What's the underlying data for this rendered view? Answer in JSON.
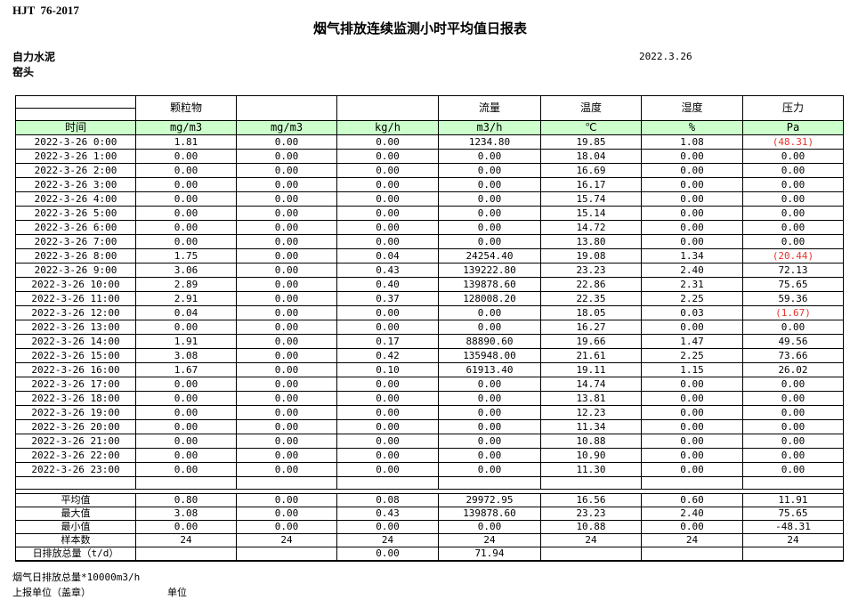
{
  "header": {
    "standard": "HJT  76-2017",
    "title": "烟气排放连续监测小时平均值日报表",
    "company": "自力水泥",
    "station": "窑头",
    "date": "2022.3.26"
  },
  "colors": {
    "header_fill": "#ccffcc",
    "negative": "#e8332a",
    "border": "#000000"
  },
  "table": {
    "groups": [
      "",
      "颗粒物",
      "",
      "",
      "流量",
      "温度",
      "湿度",
      "压力"
    ],
    "units": [
      "时间",
      "mg/m3",
      "mg/m3",
      "kg/h",
      "m3/h",
      "℃",
      "%",
      "Pa"
    ],
    "hourly_rows": [
      [
        "2022-3-26 0:00",
        "1.81",
        "0.00",
        "0.00",
        "1234.80",
        "19.85",
        "1.08",
        "(48.31)"
      ],
      [
        "2022-3-26 1:00",
        "0.00",
        "0.00",
        "0.00",
        "0.00",
        "18.04",
        "0.00",
        "0.00"
      ],
      [
        "2022-3-26 2:00",
        "0.00",
        "0.00",
        "0.00",
        "0.00",
        "16.69",
        "0.00",
        "0.00"
      ],
      [
        "2022-3-26 3:00",
        "0.00",
        "0.00",
        "0.00",
        "0.00",
        "16.17",
        "0.00",
        "0.00"
      ],
      [
        "2022-3-26 4:00",
        "0.00",
        "0.00",
        "0.00",
        "0.00",
        "15.74",
        "0.00",
        "0.00"
      ],
      [
        "2022-3-26 5:00",
        "0.00",
        "0.00",
        "0.00",
        "0.00",
        "15.14",
        "0.00",
        "0.00"
      ],
      [
        "2022-3-26 6:00",
        "0.00",
        "0.00",
        "0.00",
        "0.00",
        "14.72",
        "0.00",
        "0.00"
      ],
      [
        "2022-3-26 7:00",
        "0.00",
        "0.00",
        "0.00",
        "0.00",
        "13.80",
        "0.00",
        "0.00"
      ],
      [
        "2022-3-26 8:00",
        "1.75",
        "0.00",
        "0.04",
        "24254.40",
        "19.08",
        "1.34",
        "(20.44)"
      ],
      [
        "2022-3-26 9:00",
        "3.06",
        "0.00",
        "0.43",
        "139222.80",
        "23.23",
        "2.40",
        "72.13"
      ],
      [
        "2022-3-26 10:00",
        "2.89",
        "0.00",
        "0.40",
        "139878.60",
        "22.86",
        "2.31",
        "75.65"
      ],
      [
        "2022-3-26 11:00",
        "2.91",
        "0.00",
        "0.37",
        "128008.20",
        "22.35",
        "2.25",
        "59.36"
      ],
      [
        "2022-3-26 12:00",
        "0.04",
        "0.00",
        "0.00",
        "0.00",
        "18.05",
        "0.03",
        "(1.67)"
      ],
      [
        "2022-3-26 13:00",
        "0.00",
        "0.00",
        "0.00",
        "0.00",
        "16.27",
        "0.00",
        "0.00"
      ],
      [
        "2022-3-26 14:00",
        "1.91",
        "0.00",
        "0.17",
        "88890.60",
        "19.66",
        "1.47",
        "49.56"
      ],
      [
        "2022-3-26 15:00",
        "3.08",
        "0.00",
        "0.42",
        "135948.00",
        "21.61",
        "2.25",
        "73.66"
      ],
      [
        "2022-3-26 16:00",
        "1.67",
        "0.00",
        "0.10",
        "61913.40",
        "19.11",
        "1.15",
        "26.02"
      ],
      [
        "2022-3-26 17:00",
        "0.00",
        "0.00",
        "0.00",
        "0.00",
        "14.74",
        "0.00",
        "0.00"
      ],
      [
        "2022-3-26 18:00",
        "0.00",
        "0.00",
        "0.00",
        "0.00",
        "13.81",
        "0.00",
        "0.00"
      ],
      [
        "2022-3-26 19:00",
        "0.00",
        "0.00",
        "0.00",
        "0.00",
        "12.23",
        "0.00",
        "0.00"
      ],
      [
        "2022-3-26 20:00",
        "0.00",
        "0.00",
        "0.00",
        "0.00",
        "11.34",
        "0.00",
        "0.00"
      ],
      [
        "2022-3-26 21:00",
        "0.00",
        "0.00",
        "0.00",
        "0.00",
        "10.88",
        "0.00",
        "0.00"
      ],
      [
        "2022-3-26 22:00",
        "0.00",
        "0.00",
        "0.00",
        "0.00",
        "10.90",
        "0.00",
        "0.00"
      ],
      [
        "2022-3-26 23:00",
        "0.00",
        "0.00",
        "0.00",
        "0.00",
        "11.30",
        "0.00",
        "0.00"
      ]
    ],
    "summary_rows": [
      [
        "平均值",
        "0.80",
        "0.00",
        "0.08",
        "29972.95",
        "16.56",
        "0.60",
        "11.91"
      ],
      [
        "最大值",
        "3.08",
        "0.00",
        "0.43",
        "139878.60",
        "23.23",
        "2.40",
        "75.65"
      ],
      [
        "最小值",
        "0.00",
        "0.00",
        "0.00",
        "0.00",
        "10.88",
        "0.00",
        "-48.31"
      ],
      [
        "样本数",
        "24",
        "24",
        "24",
        "24",
        "24",
        "24",
        "24"
      ],
      [
        "日排放总量（t/d）",
        "",
        "",
        "0.00",
        "71.94",
        "",
        "",
        ""
      ]
    ]
  },
  "footer": {
    "note": "烟气日排放总量*10000m3/h",
    "report_unit_label": "上报单位（盖章）",
    "unit_label": "单位"
  }
}
